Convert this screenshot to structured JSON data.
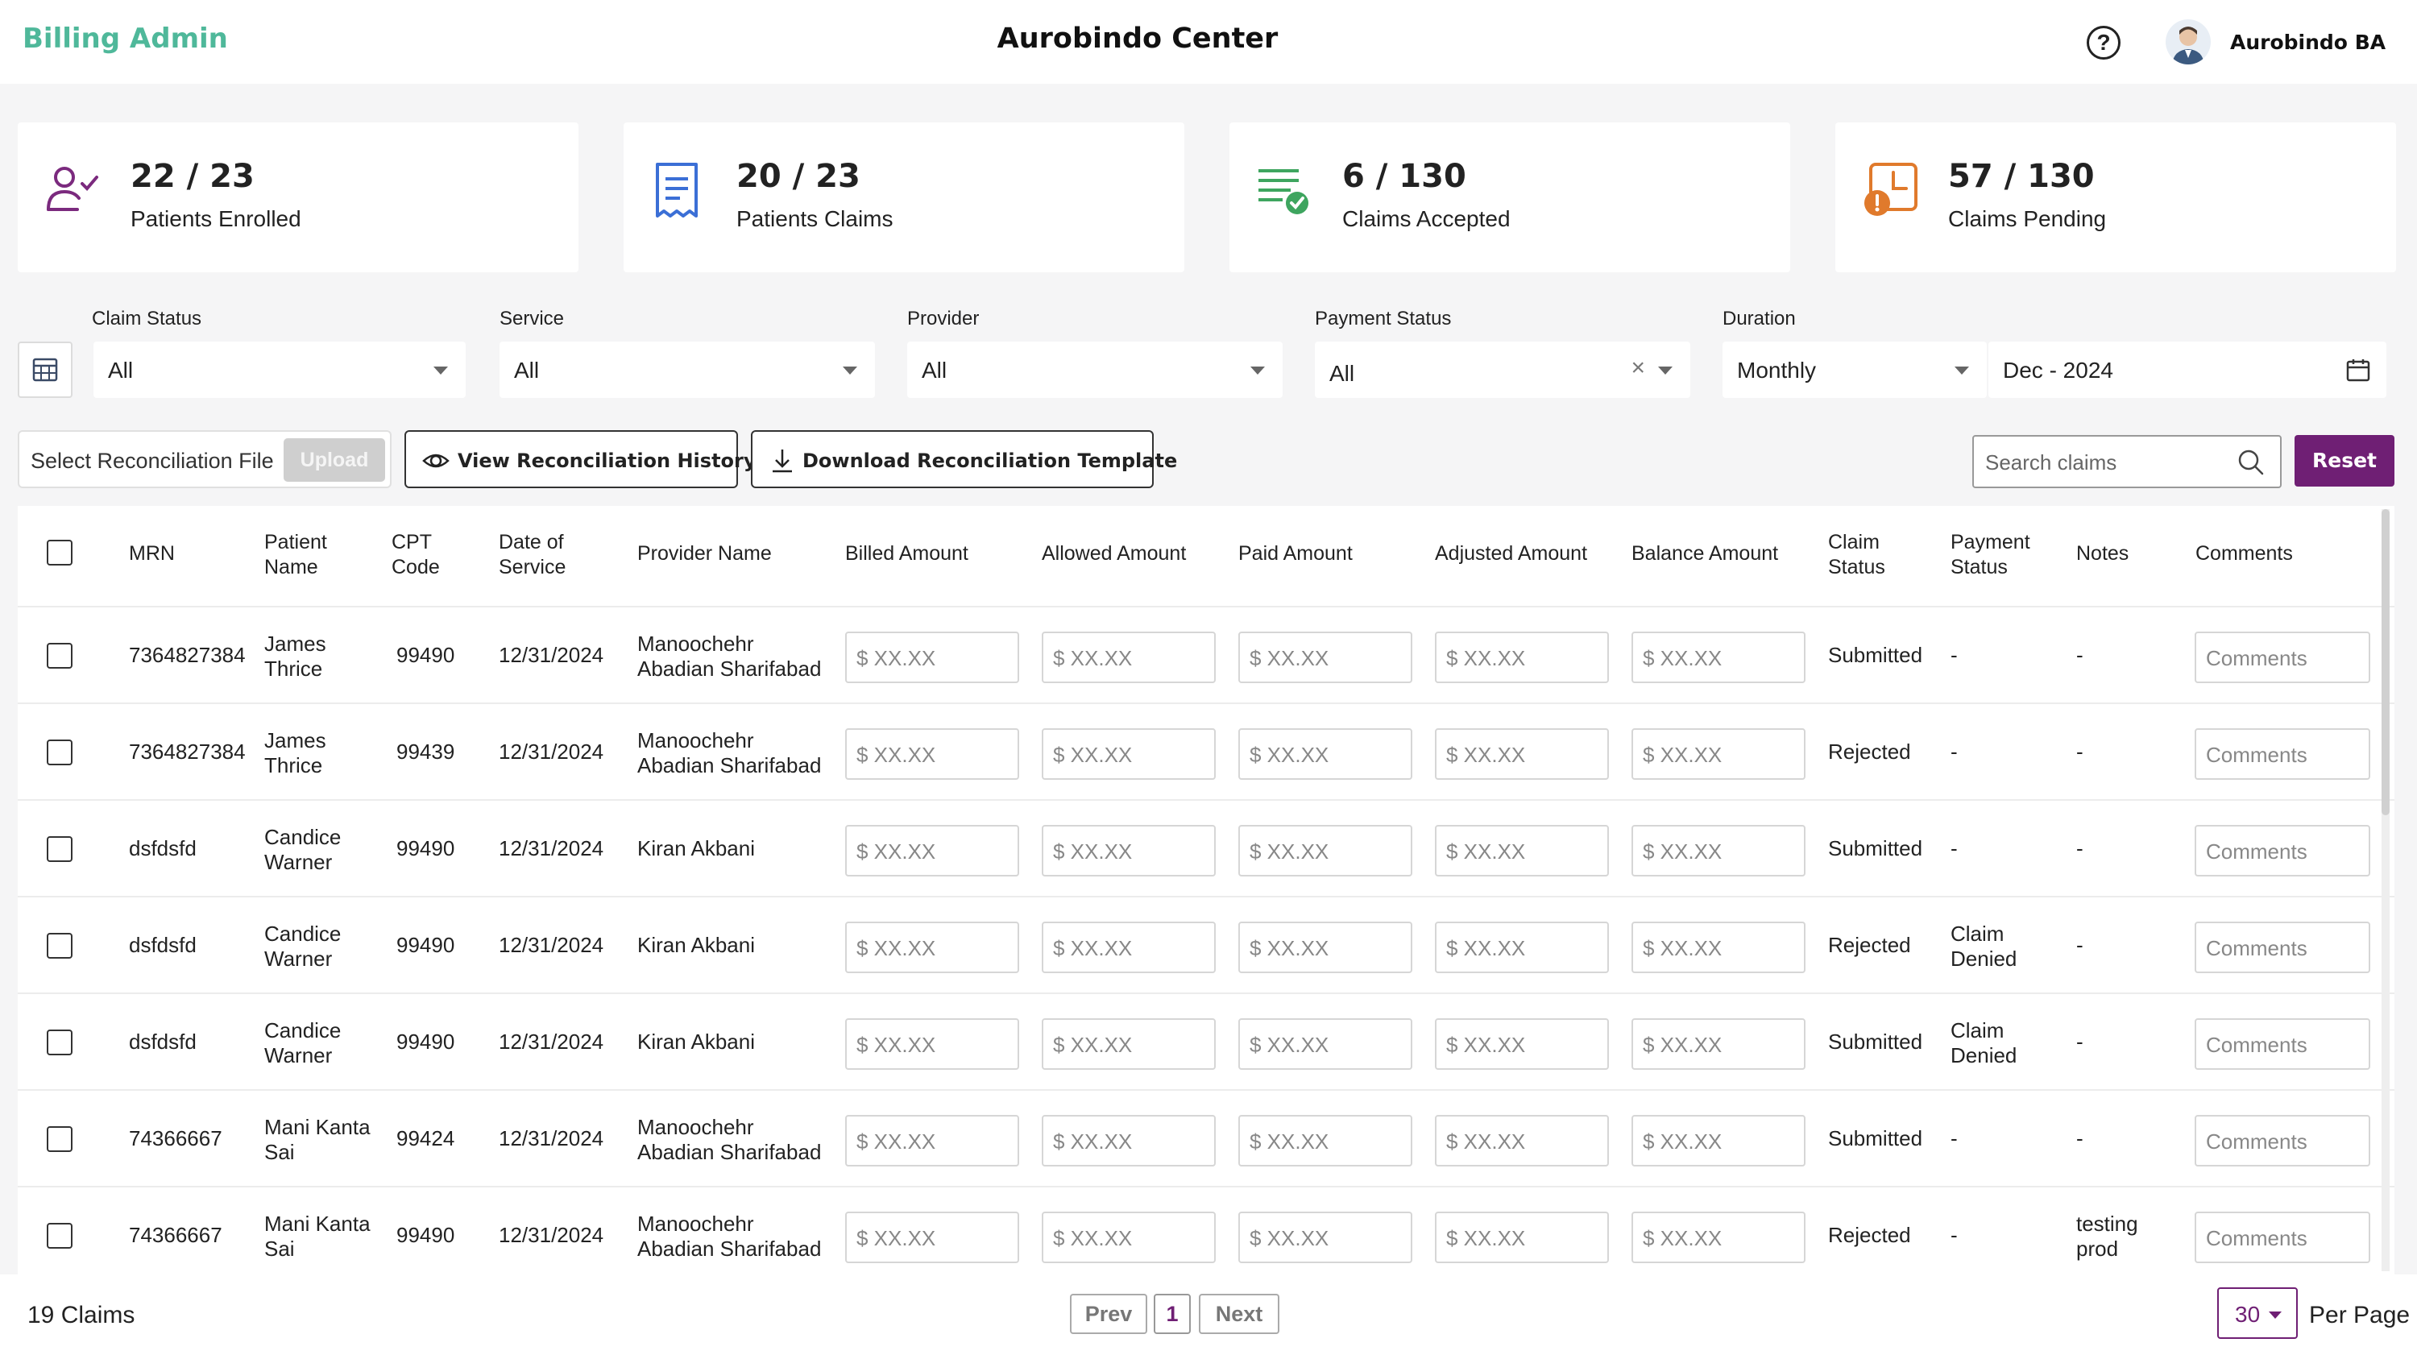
{
  "header": {
    "brand": "Billing Admin",
    "center_title": "Aurobindo Center",
    "help_symbol": "?",
    "user_name": "Aurobindo BA"
  },
  "stats": [
    {
      "value": "22 / 23",
      "label": "Patients Enrolled",
      "icon": "patient-check-icon",
      "color": "#7b2a7e"
    },
    {
      "value": "20 / 23",
      "label": "Patients Claims",
      "icon": "receipt-icon",
      "color": "#3b6fd6"
    },
    {
      "value": "6 / 130",
      "label": "Claims Accepted",
      "icon": "list-check-icon",
      "color": "#3ea55f"
    },
    {
      "value": "57 / 130",
      "label": "Claims Pending",
      "icon": "pending-clock-icon",
      "color": "#e07a2c"
    }
  ],
  "filters": {
    "claim_status": {
      "label": "Claim Status",
      "value": "All"
    },
    "service": {
      "label": "Service",
      "value": "All"
    },
    "provider": {
      "label": "Provider",
      "value": "All"
    },
    "payment_status": {
      "label": "Payment Status",
      "value": "All",
      "clear": "×"
    },
    "duration": {
      "label": "Duration",
      "value": "Monthly",
      "date": "Dec - 2024"
    }
  },
  "actions": {
    "select_file": "Select Reconciliation File",
    "upload": "Upload",
    "view_history": "View Reconciliation History",
    "download_template": "Download Reconciliation Template",
    "search_placeholder": "Search claims",
    "reset": "Reset"
  },
  "table": {
    "headers": {
      "mrn": "MRN",
      "patient_name": [
        "Patient",
        "Name"
      ],
      "cpt_code": [
        "CPT",
        "Code"
      ],
      "date_of_service": [
        "Date of",
        "Service"
      ],
      "provider_name": "Provider Name",
      "billed": "Billed Amount",
      "allowed": "Allowed Amount",
      "paid": "Paid Amount",
      "adjusted": "Adjusted Amount",
      "balance": "Balance Amount",
      "claim_status": [
        "Claim",
        "Status"
      ],
      "payment_status": [
        "Payment",
        "Status"
      ],
      "notes": "Notes",
      "comments": "Comments"
    },
    "amount_placeholder": "$ XX.XX",
    "comments_placeholder": "Comments",
    "rows": [
      {
        "mrn": "7364827384",
        "patient": [
          "James",
          "Thrice"
        ],
        "cpt": "99490",
        "date": "12/31/2024",
        "provider": [
          "Manoochehr",
          "Abadian Sharifabad"
        ],
        "claim_status": "Submitted",
        "payment_status": [
          "-"
        ],
        "notes": [
          "-"
        ]
      },
      {
        "mrn": "7364827384",
        "patient": [
          "James",
          "Thrice"
        ],
        "cpt": "99439",
        "date": "12/31/2024",
        "provider": [
          "Manoochehr",
          "Abadian Sharifabad"
        ],
        "claim_status": "Rejected",
        "payment_status": [
          "-"
        ],
        "notes": [
          "-"
        ]
      },
      {
        "mrn": "dsfdsfd",
        "patient": [
          "Candice",
          "Warner"
        ],
        "cpt": "99490",
        "date": "12/31/2024",
        "provider": [
          "Kiran Akbani"
        ],
        "claim_status": "Submitted",
        "payment_status": [
          "-"
        ],
        "notes": [
          "-"
        ]
      },
      {
        "mrn": "dsfdsfd",
        "patient": [
          "Candice",
          "Warner"
        ],
        "cpt": "99490",
        "date": "12/31/2024",
        "provider": [
          "Kiran Akbani"
        ],
        "claim_status": "Rejected",
        "payment_status": [
          "Claim",
          "Denied"
        ],
        "notes": [
          "-"
        ]
      },
      {
        "mrn": "dsfdsfd",
        "patient": [
          "Candice",
          "Warner"
        ],
        "cpt": "99490",
        "date": "12/31/2024",
        "provider": [
          "Kiran Akbani"
        ],
        "claim_status": "Submitted",
        "payment_status": [
          "Claim",
          "Denied"
        ],
        "notes": [
          "-"
        ]
      },
      {
        "mrn": "74366667",
        "patient": [
          "Mani Kanta",
          "Sai"
        ],
        "cpt": "99424",
        "date": "12/31/2024",
        "provider": [
          "Manoochehr",
          "Abadian Sharifabad"
        ],
        "claim_status": "Submitted",
        "payment_status": [
          "-"
        ],
        "notes": [
          "-"
        ]
      },
      {
        "mrn": "74366667",
        "patient": [
          "Mani Kanta",
          "Sai"
        ],
        "cpt": "99490",
        "date": "12/31/2024",
        "provider": [
          "Manoochehr",
          "Abadian Sharifabad"
        ],
        "claim_status": "Rejected",
        "payment_status": [
          "-"
        ],
        "notes": [
          "testing",
          "prod"
        ]
      }
    ]
  },
  "footer": {
    "total": "19 Claims",
    "prev": "Prev",
    "page": "1",
    "next": "Next",
    "per_page_value": "30",
    "per_page_label": "Per Page"
  },
  "colors": {
    "brand": "#4fb89a",
    "accent": "#6f1f74"
  }
}
